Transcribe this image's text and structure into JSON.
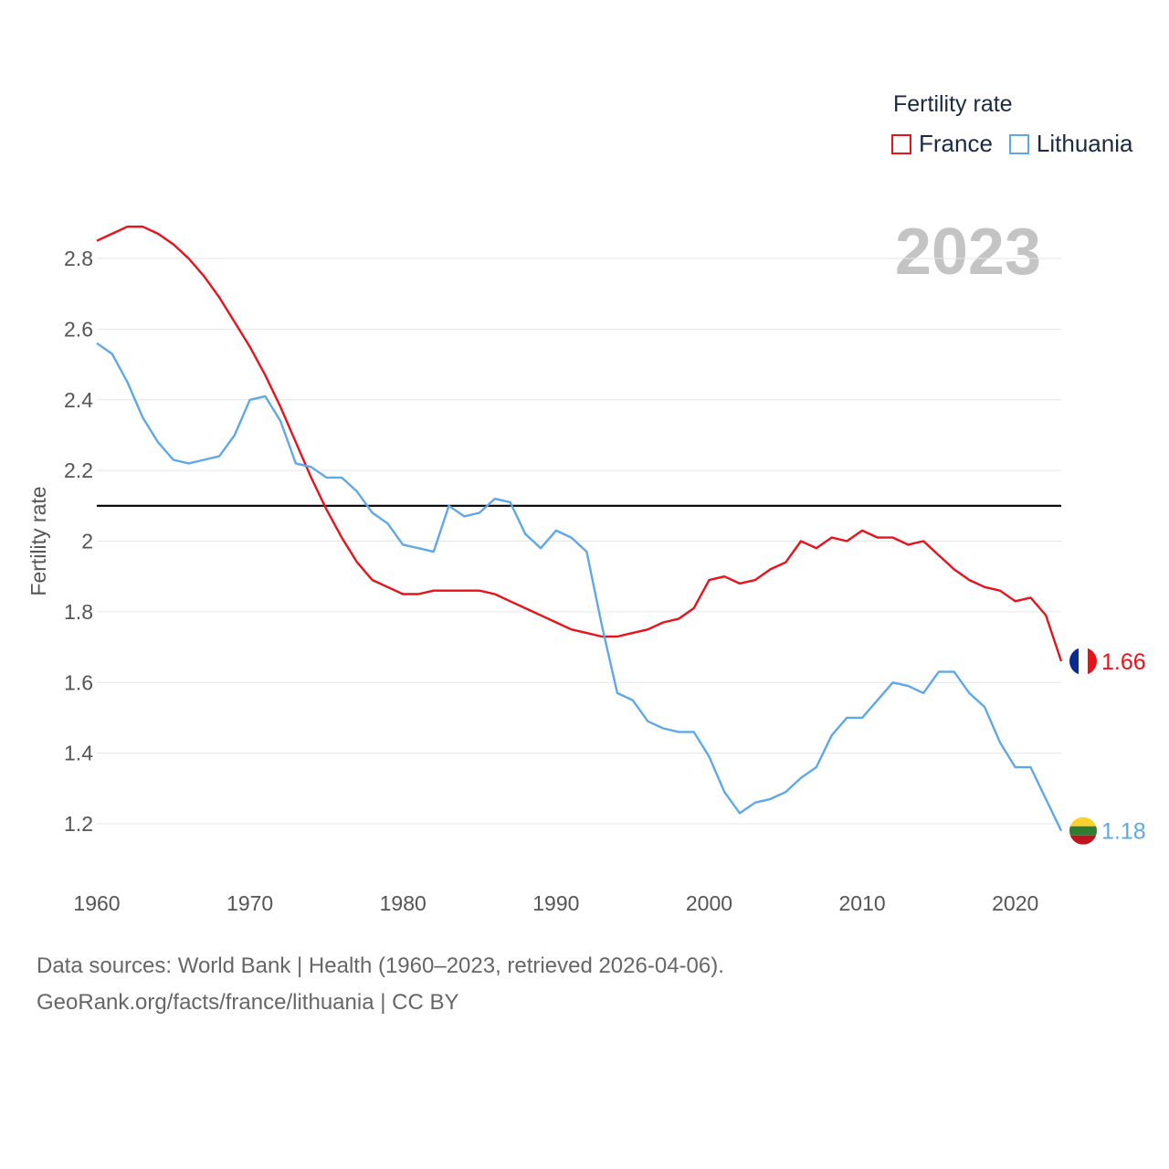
{
  "legend": {
    "title": "Fertility rate",
    "items": [
      {
        "label": "France",
        "color": "#e8121b"
      },
      {
        "label": "Lithuania",
        "color": "#5fa8e8"
      }
    ]
  },
  "footer": {
    "line1": "Data sources: World Bank | Health (1960–2023, retrieved 2026-04-06).",
    "line2": "GeoRank.org/facts/france/lithuania | CC BY"
  },
  "chart_data": {
    "type": "line",
    "year_label": "2023",
    "ylabel": "Fertility rate",
    "xlabel": "",
    "xlim": [
      1960,
      2023
    ],
    "ylim": [
      1.1,
      2.95
    ],
    "x_ticks": [
      1960,
      1970,
      1980,
      1990,
      2000,
      2010,
      2020
    ],
    "y_ticks": [
      1.2,
      1.4,
      1.6,
      1.8,
      2,
      2.2,
      2.4,
      2.6,
      2.8
    ],
    "y_tick_labels": [
      "1.2",
      "1.4",
      "1.6",
      "1.8",
      "2",
      "2.2",
      "2.4",
      "2.6",
      "2.8"
    ],
    "reference_line": {
      "y": 2.1,
      "color": "#000000"
    },
    "x": [
      1960,
      1961,
      1962,
      1963,
      1964,
      1965,
      1966,
      1967,
      1968,
      1969,
      1970,
      1971,
      1972,
      1973,
      1974,
      1975,
      1976,
      1977,
      1978,
      1979,
      1980,
      1981,
      1982,
      1983,
      1984,
      1985,
      1986,
      1987,
      1988,
      1989,
      1990,
      1991,
      1992,
      1993,
      1994,
      1995,
      1996,
      1997,
      1998,
      1999,
      2000,
      2001,
      2002,
      2003,
      2004,
      2005,
      2006,
      2007,
      2008,
      2009,
      2010,
      2011,
      2012,
      2013,
      2014,
      2015,
      2016,
      2017,
      2018,
      2019,
      2020,
      2021,
      2022,
      2023
    ],
    "series": [
      {
        "name": "France",
        "color": "#e8121b",
        "end_label": "1.66",
        "flag": "france-flag",
        "values": [
          2.85,
          2.87,
          2.89,
          2.89,
          2.87,
          2.84,
          2.8,
          2.75,
          2.69,
          2.62,
          2.55,
          2.47,
          2.38,
          2.28,
          2.18,
          2.09,
          2.01,
          1.94,
          1.89,
          1.87,
          1.85,
          1.85,
          1.86,
          1.86,
          1.86,
          1.86,
          1.85,
          1.83,
          1.81,
          1.79,
          1.77,
          1.75,
          1.74,
          1.73,
          1.73,
          1.74,
          1.75,
          1.77,
          1.78,
          1.81,
          1.89,
          1.9,
          1.88,
          1.89,
          1.92,
          1.94,
          2.0,
          1.98,
          2.01,
          2.0,
          2.03,
          2.01,
          2.01,
          1.99,
          2.0,
          1.96,
          1.92,
          1.89,
          1.87,
          1.86,
          1.83,
          1.84,
          1.79,
          1.66
        ]
      },
      {
        "name": "Lithuania",
        "color": "#5fa8e8",
        "end_label": "1.18",
        "flag": "lithuania-flag",
        "values": [
          2.56,
          2.53,
          2.45,
          2.35,
          2.28,
          2.23,
          2.22,
          2.23,
          2.24,
          2.3,
          2.4,
          2.41,
          2.34,
          2.22,
          2.21,
          2.18,
          2.18,
          2.14,
          2.08,
          2.05,
          1.99,
          1.98,
          1.97,
          2.1,
          2.07,
          2.08,
          2.12,
          2.11,
          2.02,
          1.98,
          2.03,
          2.01,
          1.97,
          1.76,
          1.57,
          1.55,
          1.49,
          1.47,
          1.46,
          1.46,
          1.39,
          1.29,
          1.23,
          1.26,
          1.27,
          1.29,
          1.33,
          1.36,
          1.45,
          1.5,
          1.5,
          1.55,
          1.6,
          1.59,
          1.57,
          1.63,
          1.63,
          1.57,
          1.53,
          1.43,
          1.36,
          1.36,
          1.27,
          1.18
        ]
      }
    ]
  }
}
